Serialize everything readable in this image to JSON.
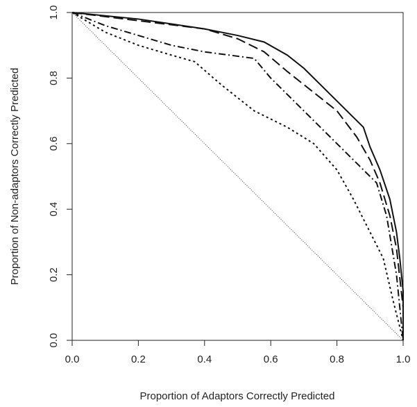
{
  "chart_data": {
    "type": "line",
    "x_label": "Proportion of Adaptors Correctly Predicted",
    "y_label": "Proportion of Non-adaptors Correctly Predicted",
    "xlim": [
      0,
      1
    ],
    "ylim": [
      0,
      1
    ],
    "xticks": [
      {
        "value": 0,
        "label": "0.0"
      },
      0.2,
      0.4,
      0.6,
      0.8,
      {
        "value": 1,
        "label": "1.0"
      }
    ],
    "yticks": [
      {
        "value": 0,
        "label": "0.0"
      },
      0.2,
      0.4,
      0.6,
      0.8,
      {
        "value": 1,
        "label": "1.0"
      }
    ],
    "series": [
      {
        "color": "#111111",
        "dash": "solid",
        "width": 2,
        "x": [
          0,
          0.1,
          0.2,
          0.3,
          0.4,
          0.5,
          0.58,
          0.65,
          0.7,
          0.75,
          0.8,
          0.85,
          0.88,
          0.9,
          0.93,
          0.96,
          0.98,
          0.99,
          1,
          1
        ],
        "values": [
          1,
          0.99,
          0.98,
          0.965,
          0.95,
          0.93,
          0.91,
          0.87,
          0.83,
          0.78,
          0.73,
          0.68,
          0.65,
          0.59,
          0.52,
          0.43,
          0.33,
          0.25,
          0.15,
          0
        ]
      },
      {
        "color": "#111111",
        "dash": "14 6",
        "width": 2,
        "x": [
          0,
          0.2,
          0.4,
          0.5,
          0.58,
          0.65,
          0.7,
          0.8,
          0.86,
          0.9,
          0.93,
          0.96,
          0.98,
          1,
          1
        ],
        "values": [
          1,
          0.975,
          0.95,
          0.92,
          0.88,
          0.82,
          0.78,
          0.7,
          0.62,
          0.55,
          0.48,
          0.38,
          0.28,
          0.1,
          0
        ]
      },
      {
        "color": "#111111",
        "dash": "10 4 2 4",
        "width": 2,
        "x": [
          0,
          0.1,
          0.2,
          0.3,
          0.4,
          0.55,
          0.6,
          0.7,
          0.8,
          0.87,
          0.92,
          0.95,
          0.98,
          1
        ],
        "values": [
          1,
          0.96,
          0.93,
          0.9,
          0.88,
          0.86,
          0.8,
          0.7,
          0.6,
          0.53,
          0.48,
          0.38,
          0.2,
          0
        ]
      },
      {
        "color": "#111111",
        "dash": "3 4",
        "width": 2,
        "x": [
          0,
          0.1,
          0.2,
          0.3,
          0.37,
          0.45,
          0.55,
          0.65,
          0.73,
          0.8,
          0.85,
          0.9,
          0.94,
          0.97,
          1
        ],
        "values": [
          1,
          0.94,
          0.9,
          0.87,
          0.85,
          0.78,
          0.7,
          0.65,
          0.6,
          0.52,
          0.43,
          0.33,
          0.25,
          0.12,
          0
        ]
      },
      {
        "color": "#333333",
        "dash": "1 2",
        "width": 1,
        "x": [
          0,
          1
        ],
        "values": [
          1,
          0
        ]
      }
    ]
  }
}
